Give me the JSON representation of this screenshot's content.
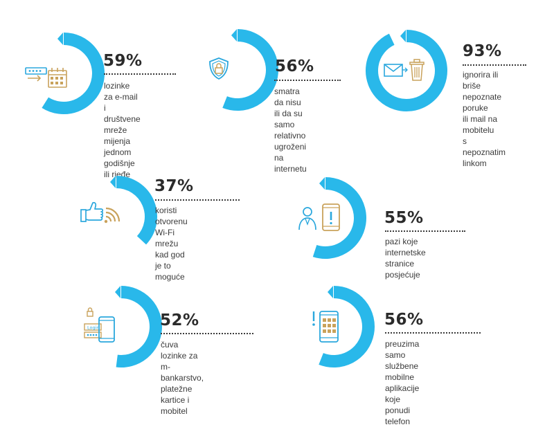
{
  "colors": {
    "accent": "#29b8ea",
    "icon_blue": "#2aa7dd",
    "icon_gold": "#c9a25b",
    "text": "#3a3a3a"
  },
  "chart_data": [
    {
      "type": "donut",
      "value": 59,
      "label": "59%",
      "text": "lozinke za e-mail i\ndruštvene mreže\nmijenja jednom\ngodišnje ili rjeđe",
      "icon": "password-calendar-icon"
    },
    {
      "type": "donut",
      "value": 56,
      "label": "56%",
      "text": "smatra da nisu\nili da su samo\nrelativno ugroženi\nna internetu",
      "icon": "shield-lock-icon"
    },
    {
      "type": "donut",
      "value": 93,
      "label": "93%",
      "text": "ignorira ili briše\nnepoznate poruke\nili mail na mobitelu\ns nepoznatim\nlinkom",
      "icon": "mail-trash-icon"
    },
    {
      "type": "donut",
      "value": 37,
      "label": "37%",
      "text": "koristi otvorenu Wi-Fi\nmrežu kad god je to\nmoguće",
      "icon": "thumbs-up-wifi-icon"
    },
    {
      "type": "donut",
      "value": 55,
      "label": "55%",
      "text": "pazi koje internetske\nstranice posjećuje",
      "icon": "user-phone-alert-icon"
    },
    {
      "type": "donut",
      "value": 52,
      "label": "52%",
      "text": "čuva lozinke za\nm-bankarstvo, platežne\nkartice i mobitel",
      "icon": "login-phone-icon"
    },
    {
      "type": "donut",
      "value": 56,
      "label": "56%",
      "text": "preuzima samo službene\nmobilne aplikacije koje\nponudi telefon",
      "icon": "phone-apps-alert-icon"
    }
  ]
}
